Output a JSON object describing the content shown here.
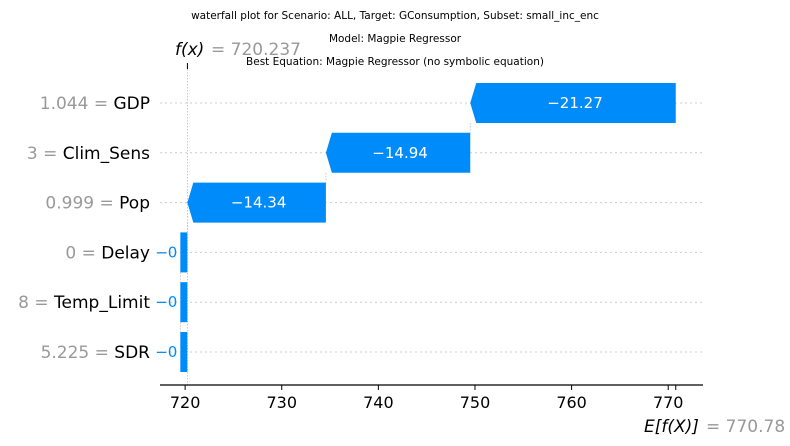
{
  "chart_data": {
    "type": "waterfall",
    "title_lines": [
      "waterfall plot for Scenario: ALL, Target: GConsumption, Subset: small_inc_enc",
      "Model: Magpie Regressor",
      "Best Equation: Magpie Regressor (no symbolic equation)"
    ],
    "fx_label": "f(x)",
    "fx_value": "720.237",
    "fx_numeric": 720.237,
    "efx_label": "E[f(X)]",
    "efx_value": "770.78",
    "efx_numeric": 770.78,
    "features": [
      {
        "value": "1.044",
        "name": "GDP",
        "shap": -21.27,
        "label": "−21.27"
      },
      {
        "value": "3",
        "name": "Clim_Sens",
        "shap": -14.94,
        "label": "−14.94"
      },
      {
        "value": "0.999",
        "name": "Pop",
        "shap": -14.34,
        "label": "−14.34"
      },
      {
        "value": "0",
        "name": "Delay",
        "shap": -0.001,
        "label": "−0"
      },
      {
        "value": "8",
        "name": "Temp_Limit",
        "shap": -0.001,
        "label": "−0"
      },
      {
        "value": "5.225",
        "name": "SDR",
        "shap": -0.001,
        "label": "−0"
      }
    ],
    "xticks": [
      720,
      730,
      740,
      750,
      760,
      770
    ],
    "xlim": [
      717.4,
      773.6
    ],
    "colors": {
      "negative": "#008bfb",
      "negative_text_outside": "#008bfb",
      "bar_text": "#ffffff",
      "muted": "#999999",
      "grid": "#cccccc"
    }
  }
}
